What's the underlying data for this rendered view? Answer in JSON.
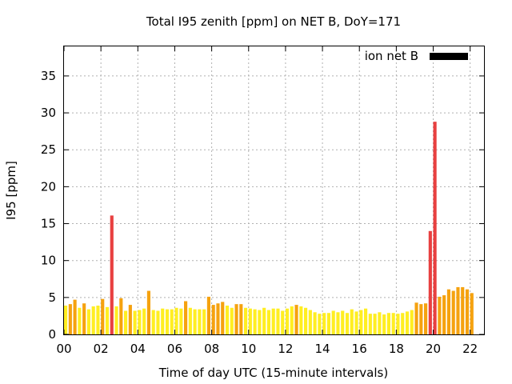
{
  "chart_data": {
    "type": "bar",
    "title": "Total I95 zenith [ppm] on NET B, DoY=171",
    "xlabel": "Time of day UTC (15-minute intervals)",
    "ylabel": "I95 [ppm]",
    "legend": {
      "label": "ion net B",
      "position": "top-right",
      "color": "#000000"
    },
    "grid": true,
    "xlim": [
      0,
      22.75
    ],
    "ylim": [
      0,
      39
    ],
    "xticks": [
      "00",
      "02",
      "04",
      "06",
      "08",
      "10",
      "12",
      "14",
      "16",
      "18",
      "20",
      "22"
    ],
    "xtick_values": [
      0,
      2,
      4,
      6,
      8,
      10,
      12,
      14,
      16,
      18,
      20,
      22
    ],
    "yticks": [
      "0",
      "5",
      "10",
      "15",
      "20",
      "25",
      "30",
      "35"
    ],
    "ytick_values": [
      0,
      5,
      10,
      15,
      20,
      25,
      30,
      35
    ],
    "bar_interval_hours": 0.25,
    "colors": {
      "low": "#ffee22",
      "mid": "#f5a20f",
      "high": "#e84040"
    },
    "values": [
      3.9,
      4.1,
      4.7,
      3.6,
      4.2,
      3.4,
      3.8,
      3.9,
      4.8,
      3.7,
      16.1,
      3.8,
      4.9,
      3.2,
      4.0,
      3.2,
      3.3,
      3.5,
      5.9,
      3.3,
      3.2,
      3.5,
      3.4,
      3.4,
      3.6,
      3.5,
      4.5,
      3.6,
      3.4,
      3.4,
      3.4,
      5.1,
      4.0,
      4.2,
      4.4,
      3.9,
      3.6,
      4.1,
      4.1,
      3.6,
      3.5,
      3.4,
      3.3,
      3.6,
      3.3,
      3.5,
      3.5,
      3.2,
      3.5,
      3.8,
      4.0,
      3.8,
      3.6,
      3.3,
      3.0,
      2.8,
      2.9,
      2.9,
      3.2,
      3.0,
      3.2,
      2.9,
      3.4,
      3.1,
      3.3,
      3.5,
      2.8,
      2.8,
      3.0,
      2.7,
      2.9,
      2.9,
      2.8,
      2.9,
      3.1,
      3.3,
      4.3,
      4.1,
      4.2,
      14.0,
      28.8,
      5.1,
      5.3,
      6.1,
      5.9,
      6.4,
      6.4,
      6.1,
      5.6
    ]
  }
}
